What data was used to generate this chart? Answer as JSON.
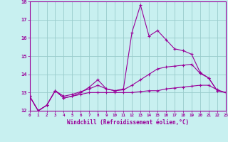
{
  "xlabel": "Windchill (Refroidissement éolien,°C)",
  "bg_color": "#c8f0f0",
  "line_color": "#990099",
  "grid_color": "#99cccc",
  "xmin": 0,
  "xmax": 23,
  "ymin": 12,
  "ymax": 18,
  "yticks": [
    12,
    13,
    14,
    15,
    16,
    17,
    18
  ],
  "xticks": [
    0,
    1,
    2,
    3,
    4,
    5,
    6,
    7,
    8,
    9,
    10,
    11,
    12,
    13,
    14,
    15,
    16,
    17,
    18,
    19,
    20,
    21,
    22,
    23
  ],
  "series1": [
    12.8,
    12.0,
    12.3,
    13.1,
    12.7,
    12.8,
    13.0,
    13.3,
    13.7,
    13.2,
    13.1,
    13.2,
    16.3,
    17.8,
    16.1,
    16.4,
    15.9,
    15.4,
    15.3,
    15.1,
    14.1,
    13.8,
    13.1,
    13.0
  ],
  "series2": [
    12.8,
    12.0,
    12.3,
    13.1,
    12.7,
    12.8,
    12.9,
    13.0,
    13.0,
    13.0,
    13.0,
    13.0,
    13.0,
    13.05,
    13.1,
    13.1,
    13.2,
    13.25,
    13.3,
    13.35,
    13.4,
    13.4,
    13.15,
    13.0
  ],
  "series3": [
    12.8,
    12.0,
    12.3,
    13.1,
    12.8,
    12.9,
    13.05,
    13.2,
    13.4,
    13.2,
    13.1,
    13.15,
    13.4,
    13.7,
    14.0,
    14.3,
    14.4,
    14.45,
    14.5,
    14.55,
    14.05,
    13.8,
    13.1,
    13.0
  ]
}
